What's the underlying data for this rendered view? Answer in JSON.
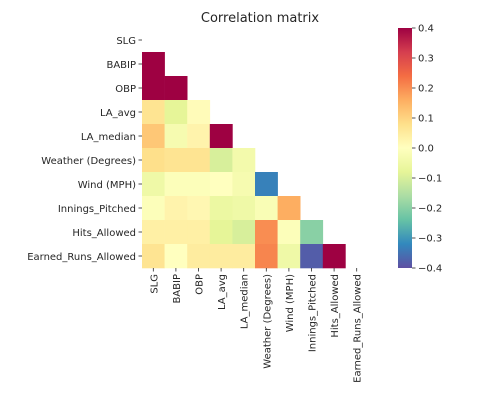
{
  "chart_data": {
    "type": "heatmap",
    "title": "Correlation matrix",
    "row_labels": [
      "SLG",
      "BABIP",
      "OBP",
      "LA_avg",
      "LA_median",
      "Weather (Degrees)",
      "Wind (MPH)",
      "Innings_Pitched",
      "Hits_Allowed",
      "Earned_Runs_Allowed"
    ],
    "col_labels": [
      "SLG",
      "BABIP",
      "OBP",
      "LA_avg",
      "LA_median",
      "Weather (Degrees)",
      "Wind (MPH)",
      "Innings_Pitched",
      "Hits_Allowed",
      "Earned_Runs_Allowed"
    ],
    "mask": "upper-triangle-including-diagonal",
    "values": [
      [
        null,
        null,
        null,
        null,
        null,
        null,
        null,
        null,
        null,
        null
      ],
      [
        0.4,
        null,
        null,
        null,
        null,
        null,
        null,
        null,
        null,
        null
      ],
      [
        0.4,
        0.4,
        null,
        null,
        null,
        null,
        null,
        null,
        null,
        null
      ],
      [
        0.07,
        -0.08,
        0.01,
        null,
        null,
        null,
        null,
        null,
        null,
        null
      ],
      [
        0.12,
        -0.03,
        0.03,
        0.4,
        null,
        null,
        null,
        null,
        null,
        null
      ],
      [
        0.08,
        0.07,
        0.07,
        -0.1,
        -0.04,
        null,
        null,
        null,
        null,
        null
      ],
      [
        -0.05,
        -0.01,
        -0.01,
        0.0,
        -0.03,
        -0.33,
        null,
        null,
        null,
        null
      ],
      [
        -0.01,
        0.03,
        0.02,
        -0.06,
        -0.05,
        -0.02,
        0.16,
        null,
        null,
        null
      ],
      [
        0.04,
        0.04,
        0.04,
        -0.08,
        -0.1,
        0.2,
        -0.01,
        -0.2,
        null,
        null
      ],
      [
        0.07,
        0.0,
        0.05,
        0.05,
        0.05,
        0.21,
        -0.05,
        -0.38,
        0.4,
        null
      ]
    ],
    "colorbar": {
      "min": -0.4,
      "max": 0.4,
      "ticks": [
        "0.4",
        "0.3",
        "0.2",
        "0.1",
        "0.0",
        "−0.1",
        "−0.2",
        "−0.3",
        "−0.4"
      ],
      "tick_values": [
        0.4,
        0.3,
        0.2,
        0.1,
        0.0,
        -0.1,
        -0.2,
        -0.3,
        -0.4
      ]
    },
    "colormap": [
      "#5e4fa2",
      "#3288bd",
      "#66c2a5",
      "#abdda4",
      "#e6f598",
      "#ffffbf",
      "#fee08b",
      "#fdae61",
      "#f46d43",
      "#d53e4f",
      "#9e0142"
    ]
  }
}
